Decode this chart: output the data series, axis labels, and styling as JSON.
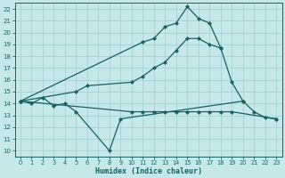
{
  "xlabel": "Humidex (Indice chaleur)",
  "xlim": [
    -0.5,
    23.5
  ],
  "ylim": [
    9.5,
    22.5
  ],
  "yticks": [
    10,
    11,
    12,
    13,
    14,
    15,
    16,
    17,
    18,
    19,
    20,
    21,
    22
  ],
  "xticks": [
    0,
    1,
    2,
    3,
    4,
    5,
    6,
    7,
    8,
    9,
    10,
    11,
    12,
    13,
    14,
    15,
    16,
    17,
    18,
    19,
    20,
    21,
    22,
    23
  ],
  "bg_color": "#c5e8e8",
  "grid_color": "#9ecece",
  "line_color": "#1a6060",
  "line_width": 0.9,
  "marker": "D",
  "marker_size": 2.2,
  "line1_x": [
    0,
    1,
    2,
    3,
    4,
    5,
    8,
    9,
    20,
    21,
    22,
    23
  ],
  "line1_y": [
    14.2,
    14.0,
    14.5,
    13.8,
    14.0,
    13.3,
    10.0,
    12.7,
    14.2,
    13.3,
    12.8,
    12.7
  ],
  "line2_x": [
    0,
    10,
    11,
    12,
    13,
    14,
    15,
    16,
    17,
    18,
    19,
    23
  ],
  "line2_y": [
    14.2,
    13.3,
    13.3,
    13.3,
    13.3,
    13.3,
    13.3,
    13.3,
    13.3,
    13.3,
    13.3,
    12.7
  ],
  "line3_x": [
    0,
    5,
    6,
    10,
    11,
    12,
    13,
    14,
    15,
    16,
    17,
    18,
    19,
    20
  ],
  "line3_y": [
    14.2,
    15.0,
    15.5,
    15.8,
    16.3,
    17.0,
    17.5,
    18.5,
    19.5,
    19.5,
    19.0,
    18.7,
    15.8,
    14.2
  ],
  "line4_x": [
    0,
    11,
    12,
    13,
    14,
    15,
    16,
    17,
    18
  ],
  "line4_y": [
    14.2,
    19.2,
    19.5,
    20.5,
    20.8,
    22.2,
    21.2,
    20.8,
    18.7
  ]
}
